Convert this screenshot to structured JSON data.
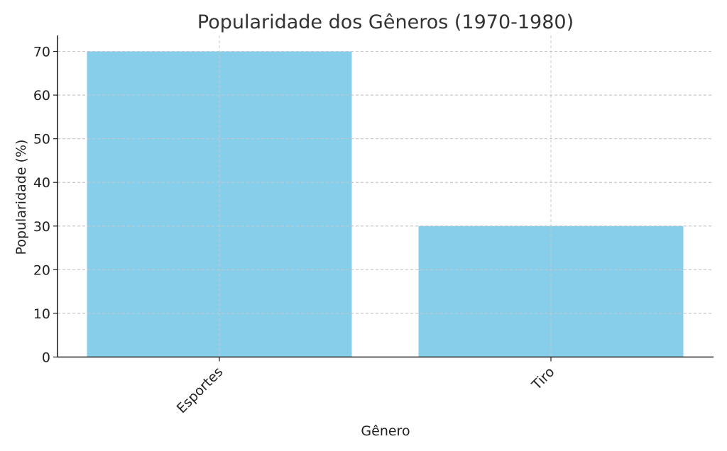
{
  "chart_data": {
    "type": "bar",
    "title": "Popularidade dos Gêneros (1970-1980)",
    "xlabel": "Gênero",
    "ylabel": "Popularidade (%)",
    "categories": [
      "Esportes",
      "Tiro"
    ],
    "values": [
      70,
      30
    ],
    "ylim": [
      0,
      70
    ],
    "yticks": [
      0,
      10,
      20,
      30,
      40,
      50,
      60,
      70
    ],
    "grid": true,
    "bar_color": "#87CEEB",
    "x_tick_rotation_deg": 45
  }
}
